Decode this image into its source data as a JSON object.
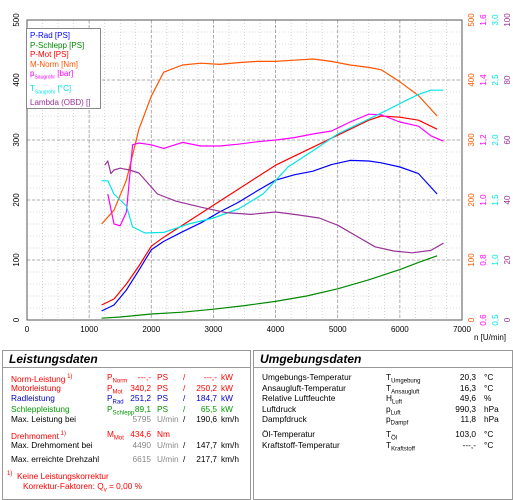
{
  "chart_data": {
    "type": "line",
    "xlabel": "n [U/min]",
    "xlim": [
      0,
      7000
    ],
    "x_ticks": [
      0,
      1000,
      2000,
      3000,
      4000,
      5000,
      6000,
      7000
    ],
    "left_axis": {
      "ylim": [
        0,
        500
      ],
      "ticks": [
        0,
        100,
        200,
        300,
        400,
        500
      ]
    },
    "right_axes": [
      {
        "color": "#ff5500",
        "ticks": [
          "0",
          "100",
          "200",
          "300",
          "400",
          "500"
        ]
      },
      {
        "color": "#ff00ff",
        "ticks": [
          "0,6",
          "0,8",
          "1,0",
          "1,2",
          "1,4",
          "1,6"
        ]
      },
      {
        "color": "#00e5e5",
        "ticks": [
          "0,5",
          "1,0",
          "1,5",
          "2,0",
          "2,5",
          "3,0"
        ]
      },
      {
        "color": "#993399",
        "ticks": [
          "0",
          "20",
          "40",
          "60",
          "80",
          "100"
        ]
      }
    ],
    "legend": [
      {
        "name": "P-Rad [PS]",
        "color": "#0000ff",
        "sub": ""
      },
      {
        "name": "P-Schlepp [PS]",
        "color": "#008800",
        "sub": ""
      },
      {
        "name": "P-Mot [PS]",
        "color": "#ff0000",
        "sub": ""
      },
      {
        "name": "M-Norm [Nm]",
        "color": "#ff5500",
        "sub": ""
      },
      {
        "name": "p",
        "sub": "Saugrohr",
        "suffix": " [bar]",
        "color": "#ff00ff"
      },
      {
        "name": "T",
        "sub": "Saugrohr",
        "suffix": " [°C]",
        "color": "#00e5e5"
      },
      {
        "name": "Lambda (OBD) []",
        "color": "#993399",
        "sub": ""
      }
    ],
    "series": [
      {
        "name": "P-Rad [PS]",
        "color": "#0000ff",
        "axis": "left",
        "points": [
          [
            1200,
            15
          ],
          [
            1400,
            25
          ],
          [
            1600,
            50
          ],
          [
            1800,
            83
          ],
          [
            2000,
            117
          ],
          [
            2200,
            131
          ],
          [
            2500,
            147
          ],
          [
            2800,
            162
          ],
          [
            3100,
            180
          ],
          [
            3400,
            196
          ],
          [
            3700,
            215
          ],
          [
            4000,
            233
          ],
          [
            4300,
            242
          ],
          [
            4600,
            248
          ],
          [
            4900,
            259
          ],
          [
            5200,
            266
          ],
          [
            5500,
            265
          ],
          [
            5700,
            262
          ],
          [
            6000,
            255
          ],
          [
            6300,
            244
          ],
          [
            6600,
            210
          ]
        ]
      },
      {
        "name": "P-Schlepp [PS]",
        "color": "#008800",
        "axis": "left",
        "points": [
          [
            1200,
            3
          ],
          [
            1500,
            5
          ],
          [
            2000,
            10
          ],
          [
            2500,
            13
          ],
          [
            3000,
            18
          ],
          [
            3500,
            24
          ],
          [
            4000,
            31
          ],
          [
            4500,
            40
          ],
          [
            5000,
            52
          ],
          [
            5500,
            67
          ],
          [
            6000,
            84
          ],
          [
            6300,
            96
          ],
          [
            6600,
            107
          ]
        ]
      },
      {
        "name": "P-Mot [PS]",
        "color": "#ff0000",
        "axis": "left",
        "points": [
          [
            1200,
            25
          ],
          [
            1400,
            35
          ],
          [
            1600,
            60
          ],
          [
            1800,
            90
          ],
          [
            2000,
            123
          ],
          [
            2200,
            138
          ],
          [
            2500,
            158
          ],
          [
            2800,
            178
          ],
          [
            3100,
            198
          ],
          [
            3400,
            218
          ],
          [
            3700,
            238
          ],
          [
            4000,
            258
          ],
          [
            4300,
            273
          ],
          [
            4600,
            288
          ],
          [
            4900,
            303
          ],
          [
            5200,
            318
          ],
          [
            5500,
            333
          ],
          [
            5700,
            340
          ],
          [
            6000,
            338
          ],
          [
            6300,
            333
          ],
          [
            6600,
            318
          ]
        ]
      },
      {
        "name": "M-Norm [Nm]",
        "color": "#ff5500",
        "axis": "left",
        "points": [
          [
            1200,
            160
          ],
          [
            1400,
            183
          ],
          [
            1600,
            233
          ],
          [
            1800,
            318
          ],
          [
            2000,
            373
          ],
          [
            2200,
            413
          ],
          [
            2500,
            425
          ],
          [
            2800,
            428
          ],
          [
            3100,
            426
          ],
          [
            3400,
            429
          ],
          [
            3700,
            431
          ],
          [
            4000,
            431
          ],
          [
            4300,
            433
          ],
          [
            4600,
            435
          ],
          [
            4900,
            431
          ],
          [
            5200,
            425
          ],
          [
            5500,
            421
          ],
          [
            5700,
            417
          ],
          [
            6000,
            397
          ],
          [
            6300,
            374
          ],
          [
            6600,
            340
          ]
        ]
      },
      {
        "name": "p Saugrohr [bar]",
        "color": "#ff00ff",
        "axis": "left",
        "points": [
          [
            1300,
            210
          ],
          [
            1400,
            160
          ],
          [
            1500,
            157
          ],
          [
            1600,
            180
          ],
          [
            1700,
            292
          ],
          [
            1800,
            295
          ],
          [
            2000,
            292
          ],
          [
            2200,
            286
          ],
          [
            2500,
            296
          ],
          [
            2800,
            290
          ],
          [
            3100,
            290
          ],
          [
            3400,
            293
          ],
          [
            3700,
            297
          ],
          [
            4000,
            300
          ],
          [
            4300,
            304
          ],
          [
            4600,
            310
          ],
          [
            4900,
            315
          ],
          [
            5200,
            330
          ],
          [
            5500,
            343
          ],
          [
            5700,
            342
          ],
          [
            6000,
            330
          ],
          [
            6300,
            323
          ],
          [
            6500,
            307
          ],
          [
            6700,
            298
          ]
        ]
      },
      {
        "name": "T Saugrohr [°C]",
        "color": "#00e5e5",
        "axis": "left",
        "points": [
          [
            1200,
            232
          ],
          [
            1300,
            232
          ],
          [
            1400,
            210
          ],
          [
            1600,
            190
          ],
          [
            1700,
            155
          ],
          [
            1900,
            145
          ],
          [
            2200,
            146
          ],
          [
            2600,
            160
          ],
          [
            3000,
            170
          ],
          [
            3400,
            185
          ],
          [
            3800,
            210
          ],
          [
            4200,
            255
          ],
          [
            4600,
            282
          ],
          [
            5000,
            310
          ],
          [
            5400,
            330
          ],
          [
            5800,
            350
          ],
          [
            6100,
            366
          ],
          [
            6300,
            376
          ],
          [
            6500,
            383
          ],
          [
            6700,
            383
          ]
        ]
      },
      {
        "name": "Lambda (OBD) []",
        "color": "#993399",
        "axis": "left",
        "points": [
          [
            1250,
            258
          ],
          [
            1300,
            265
          ],
          [
            1350,
            244
          ],
          [
            1400,
            250
          ],
          [
            1500,
            253
          ],
          [
            1650,
            250
          ],
          [
            1800,
            245
          ],
          [
            2100,
            210
          ],
          [
            2400,
            198
          ],
          [
            2800,
            188
          ],
          [
            3200,
            179
          ],
          [
            3600,
            176
          ],
          [
            4000,
            180
          ],
          [
            4300,
            176
          ],
          [
            4700,
            170
          ],
          [
            5000,
            158
          ],
          [
            5300,
            140
          ],
          [
            5600,
            122
          ],
          [
            5900,
            115
          ],
          [
            6200,
            112
          ],
          [
            6500,
            116
          ],
          [
            6700,
            128
          ]
        ]
      }
    ]
  },
  "leistungsdaten": {
    "title": "Leistungsdaten",
    "rows": [
      {
        "label": "Norm-Leistung",
        "label_sup": "1)",
        "sym": "P",
        "sym_sub": "Norm",
        "v1": "---,-",
        "u1": "PS",
        "sep": "/",
        "v2": "---,-",
        "u2": "kW",
        "color": "red"
      },
      {
        "label": "Motorleistung",
        "label_sup": "",
        "sym": "P",
        "sym_sub": "Mot",
        "v1": "340,2",
        "u1": "PS",
        "sep": "/",
        "v2": "250,2",
        "u2": "kW",
        "color": "red"
      },
      {
        "label": "Radleistung",
        "label_sup": "",
        "sym": "P",
        "sym_sub": "Rad",
        "v1": "251,2",
        "u1": "PS",
        "sep": "/",
        "v2": "184,7",
        "u2": "kW",
        "color": "blue"
      },
      {
        "label": "Schleppleistung",
        "label_sup": "",
        "sym": "P",
        "sym_sub": "Schlepp",
        "v1": "89,1",
        "u1": "PS",
        "sep": "/",
        "v2": "65,5",
        "u2": "kW",
        "color": "green"
      },
      {
        "label": "Max. Leistung bei",
        "label_sup": "",
        "sym": "",
        "sym_sub": "",
        "v1": "5795",
        "u1": "U/min",
        "sep": "/",
        "v2": "190,6",
        "u2": "km/h",
        "color": "black"
      }
    ],
    "rows2": [
      {
        "label": "Drehmoment",
        "label_sup": "1)",
        "sym": "M",
        "sym_sub": "Mot",
        "v1": "434,6",
        "u1": "Nm",
        "sep": "",
        "v2": "",
        "u2": "",
        "color": "red"
      },
      {
        "label": "Max. Drehmoment bei",
        "label_sup": "",
        "sym": "",
        "sym_sub": "",
        "v1": "4490",
        "u1": "U/min",
        "sep": "/",
        "v2": "147,7",
        "u2": "km/h",
        "color": "black"
      }
    ],
    "max_speed": {
      "label": "Max. erreichte Drehzahl",
      "v1": "6615",
      "u1": "U/min",
      "sep": "/",
      "v2": "217,7",
      "u2": "km/h"
    },
    "footnote1_sup": "1)",
    "footnote1": "Keine Leistungskorrektur",
    "footnote2": "Korrektur-Faktoren: Q",
    "footnote2_sub": "v",
    "footnote2_val": "=   0,00 %"
  },
  "umgebungsdaten": {
    "title": "Umgebungsdaten",
    "rows": [
      {
        "label": "Umgebungs-Temperatur",
        "sym": "T",
        "sym_sub": "Umgebung",
        "value": "20,3",
        "unit": "°C"
      },
      {
        "label": "Ansaugluft-Temperatur",
        "sym": "T",
        "sym_sub": "Ansaugluft",
        "value": "16,3",
        "unit": "°C"
      },
      {
        "label": "Relative Luftfeuchte",
        "sym": "H",
        "sym_sub": "Luft",
        "value": "49,6",
        "unit": "%"
      },
      {
        "label": "Luftdruck",
        "sym": "p",
        "sym_sub": "Luft",
        "value": "990,3",
        "unit": "hPa"
      },
      {
        "label": "Dampfdruck",
        "sym": "p",
        "sym_sub": "Dampf",
        "value": "11,8",
        "unit": "hPa"
      }
    ],
    "rows2": [
      {
        "label": "Öl-Temperatur",
        "sym": "T",
        "sym_sub": "Öl",
        "value": "103,0",
        "unit": "°C"
      },
      {
        "label": "Kraftstoff-Temperatur",
        "sym": "T",
        "sym_sub": "Kraftstoff",
        "value": "---,-",
        "unit": "°C"
      }
    ]
  }
}
